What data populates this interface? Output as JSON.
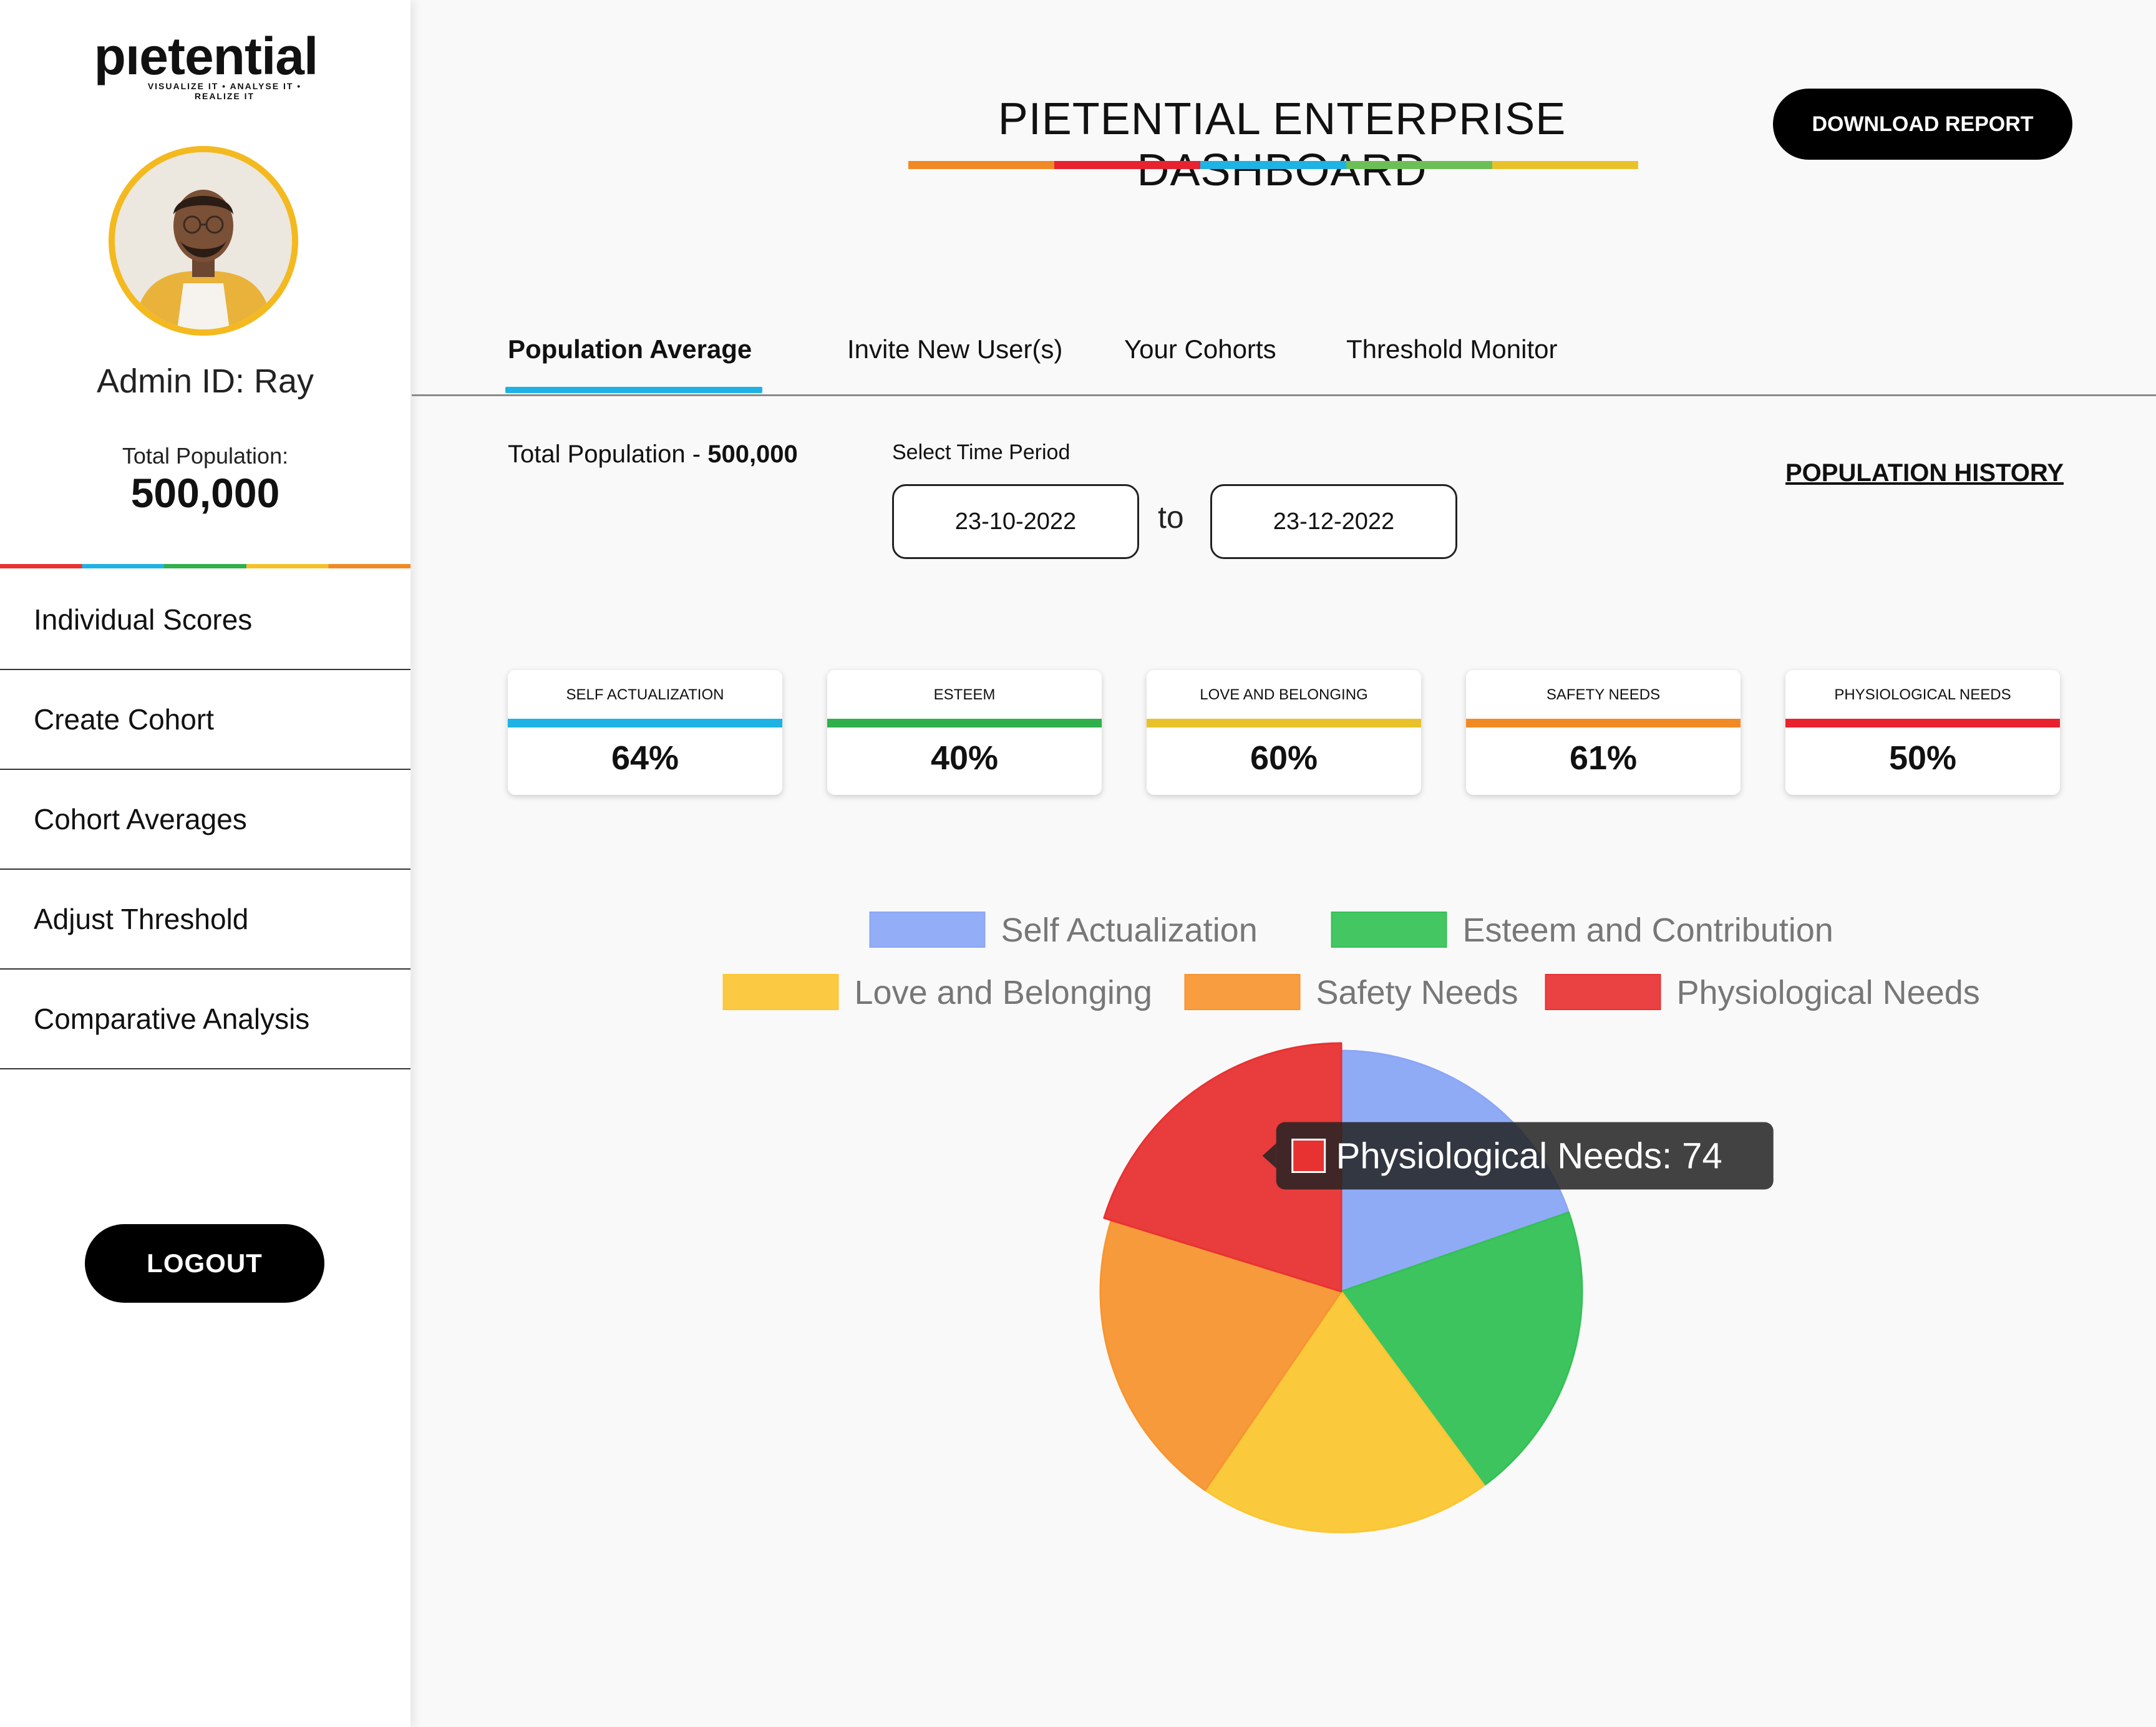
{
  "brand": {
    "name": "pıetential",
    "tagline": "VISUALIZE IT • ANALYSE IT • REALIZE IT"
  },
  "sidebar": {
    "admin_id": "Admin ID: Ray",
    "total_label": "Total Population:",
    "total_value": "500,000",
    "menu": [
      {
        "label": "Individual Scores"
      },
      {
        "label": "Create Cohort"
      },
      {
        "label": "Cohort Averages"
      },
      {
        "label": "Adjust Threshold"
      },
      {
        "label": "Comparative Analysis"
      }
    ],
    "logout_label": "LOGOUT"
  },
  "header": {
    "title": "PIETENTIAL ENTERPRISE DASHBOARD",
    "download_label": "DOWNLOAD REPORT"
  },
  "tabs": [
    {
      "label": "Population Average",
      "active": true
    },
    {
      "label": "Invite New User(s)",
      "active": false
    },
    {
      "label": "Your Cohorts",
      "active": false
    },
    {
      "label": "Threshold Monitor",
      "active": false
    }
  ],
  "controls": {
    "total_label": "Total Population - ",
    "total_value": "500,000",
    "time_label": "Select Time Period",
    "date_from": "23-10-2022",
    "to_label": "to",
    "date_to": "23-12-2022",
    "history_link": "POPULATION HISTORY"
  },
  "cards": [
    {
      "label": "SELF ACTUALIZATION",
      "value": "64%",
      "color": "#1fb2e4"
    },
    {
      "label": "ESTEEM",
      "value": "40%",
      "color": "#2fb04a"
    },
    {
      "label": "LOVE AND BELONGING",
      "value": "60%",
      "color": "#e9c22b"
    },
    {
      "label": "SAFETY NEEDS",
      "value": "61%",
      "color": "#f08a25"
    },
    {
      "label": "PHYSIOLOGICAL NEEDS",
      "value": "50%",
      "color": "#e8222f"
    }
  ],
  "chart_data": {
    "type": "pie",
    "labels": [
      "Self Actualization",
      "Esteem and Contribution",
      "Love and Belonging",
      "Safety Needs",
      "Physiological Needs"
    ],
    "values": [
      72,
      74,
      72,
      74,
      74
    ],
    "colors": [
      "#8aa6f5",
      "#34c155",
      "#fbc632",
      "#f79530",
      "#e83232"
    ],
    "legend_position": "top",
    "tooltip": {
      "text": "Physiological Needs: 74"
    }
  }
}
